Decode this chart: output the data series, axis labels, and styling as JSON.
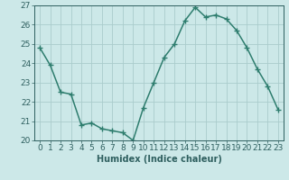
{
  "title": "",
  "xlabel": "Humidex (Indice chaleur)",
  "ylabel": "",
  "x": [
    0,
    1,
    2,
    3,
    4,
    5,
    6,
    7,
    8,
    9,
    10,
    11,
    12,
    13,
    14,
    15,
    16,
    17,
    18,
    19,
    20,
    21,
    22,
    23
  ],
  "y": [
    24.8,
    23.9,
    22.5,
    22.4,
    20.8,
    20.9,
    20.6,
    20.5,
    20.4,
    20.0,
    21.7,
    23.0,
    24.3,
    25.0,
    26.2,
    26.9,
    26.4,
    26.5,
    26.3,
    25.7,
    24.8,
    23.7,
    22.8,
    21.6
  ],
  "line_color": "#2e7d6e",
  "marker": "+",
  "marker_size": 4,
  "bg_color": "#cce8e8",
  "grid_color": "#aacccc",
  "ylim": [
    20,
    27
  ],
  "yticks": [
    20,
    21,
    22,
    23,
    24,
    25,
    26,
    27
  ],
  "xticks": [
    0,
    1,
    2,
    3,
    4,
    5,
    6,
    7,
    8,
    9,
    10,
    11,
    12,
    13,
    14,
    15,
    16,
    17,
    18,
    19,
    20,
    21,
    22,
    23
  ],
  "xlabel_fontsize": 7,
  "tick_fontsize": 6.5,
  "line_width": 1.1,
  "text_color": "#2e5f5f"
}
